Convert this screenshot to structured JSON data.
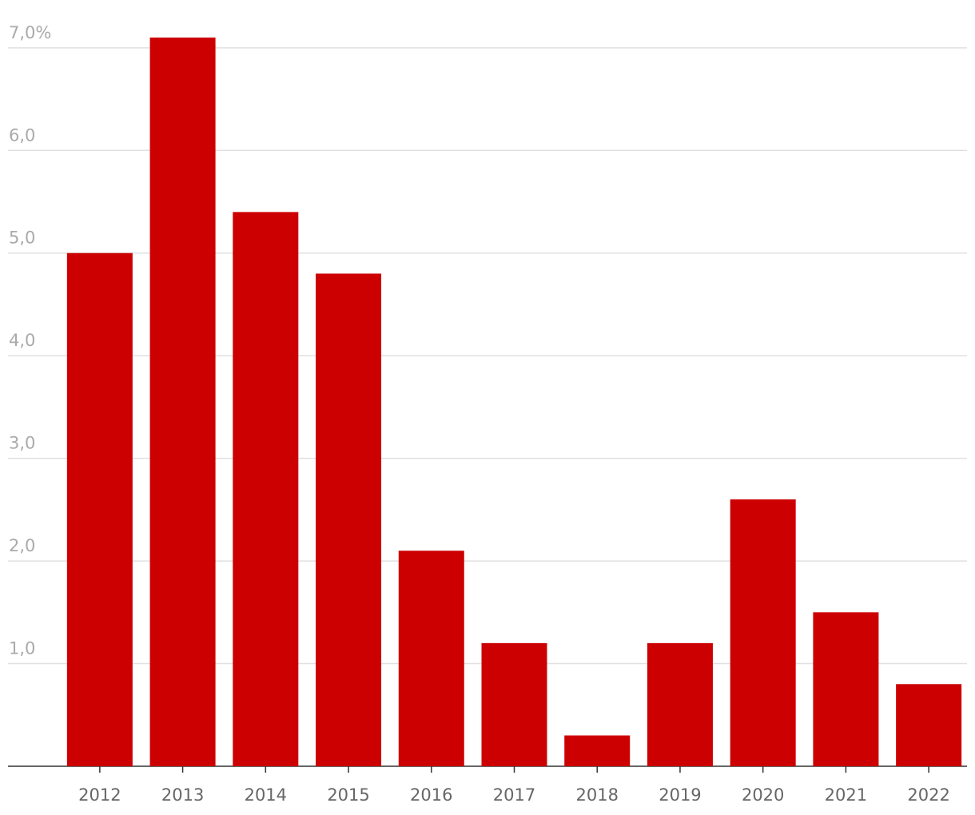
{
  "chart_data": {
    "type": "bar",
    "categories": [
      "2012",
      "2013",
      "2014",
      "2015",
      "2016",
      "2017",
      "2018",
      "2019",
      "2020",
      "2021",
      "2022"
    ],
    "values": [
      5.0,
      7.1,
      5.4,
      4.8,
      2.1,
      1.2,
      0.3,
      1.2,
      2.6,
      1.5,
      0.8
    ],
    "color": "#cc0000",
    "ylim": [
      0,
      7.1
    ],
    "yticks": [
      {
        "value": 1,
        "label": "1,0"
      },
      {
        "value": 2,
        "label": "2,0"
      },
      {
        "value": 3,
        "label": "3,0"
      },
      {
        "value": 4,
        "label": "4,0"
      },
      {
        "value": 5,
        "label": "5,0"
      },
      {
        "value": 6,
        "label": "6,0"
      },
      {
        "value": 7,
        "label": "7,0%"
      }
    ],
    "grid": true
  }
}
